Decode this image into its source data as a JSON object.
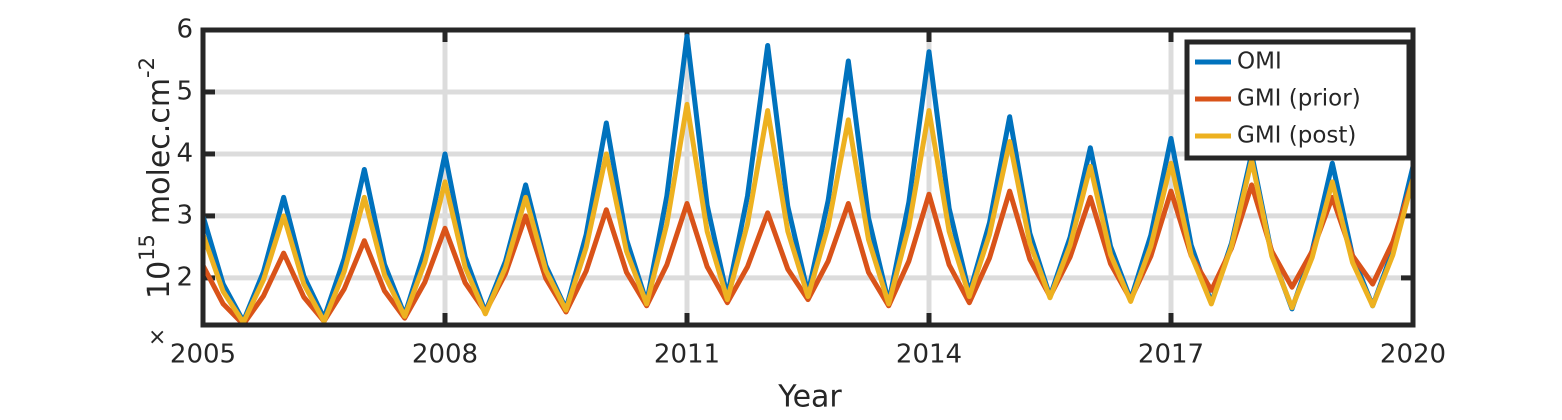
{
  "chart_data": {
    "type": "line",
    "xlabel": "Year",
    "ylabel": {
      "multiplier": "×",
      "base": "10",
      "exponent": "15",
      "unit": "molec.cm",
      "unit_exponent": "-2"
    },
    "x": [
      2005,
      2005.25,
      2005.5,
      2005.75,
      2006,
      2006.25,
      2006.5,
      2006.75,
      2007,
      2007.25,
      2007.5,
      2007.75,
      2008,
      2008.25,
      2008.5,
      2008.75,
      2009,
      2009.25,
      2009.5,
      2009.75,
      2010,
      2010.25,
      2010.5,
      2010.75,
      2011,
      2011.25,
      2011.5,
      2011.75,
      2012,
      2012.25,
      2012.5,
      2012.75,
      2013,
      2013.25,
      2013.5,
      2013.75,
      2014,
      2014.25,
      2014.5,
      2014.75,
      2015,
      2015.25,
      2015.5,
      2015.75,
      2016,
      2016.25,
      2016.5,
      2016.75,
      2017,
      2017.25,
      2017.5,
      2017.75,
      2018,
      2018.25,
      2018.5,
      2018.75,
      2019,
      2019.25,
      2019.5,
      2019.75,
      2020
    ],
    "series": [
      {
        "name": "OMI",
        "color": "#0072bd",
        "values": [
          3.0,
          1.9,
          1.3,
          2.1,
          3.3,
          2.03,
          1.35,
          2.31,
          3.75,
          2.22,
          1.4,
          2.44,
          4.0,
          2.34,
          1.45,
          2.27,
          3.5,
          2.2,
          1.5,
          2.7,
          4.5,
          2.62,
          1.6,
          3.32,
          5.9,
          3.17,
          1.7,
          3.32,
          5.75,
          3.15,
          1.75,
          3.25,
          5.5,
          2.97,
          1.6,
          3.22,
          5.65,
          3.12,
          1.75,
          2.89,
          4.6,
          2.72,
          1.7,
          2.66,
          4.1,
          2.51,
          1.65,
          2.69,
          4.25,
          2.53,
          1.6,
          2.56,
          4.0,
          2.38,
          1.5,
          2.44,
          3.85,
          2.36,
          1.55,
          2.45,
          3.8
        ]
      },
      {
        "name": "GMI (prior)",
        "color": "#d95319",
        "values": [
          2.2,
          1.58,
          1.25,
          1.71,
          2.4,
          1.69,
          1.3,
          1.82,
          2.6,
          1.79,
          1.35,
          1.93,
          2.8,
          1.92,
          1.45,
          2.07,
          3.0,
          1.99,
          1.45,
          2.11,
          3.1,
          2.09,
          1.55,
          2.21,
          3.2,
          2.18,
          1.6,
          2.18,
          3.05,
          2.14,
          1.65,
          2.27,
          3.2,
          2.09,
          1.55,
          2.27,
          3.35,
          2.21,
          1.6,
          2.32,
          3.4,
          2.3,
          1.7,
          2.34,
          3.3,
          2.23,
          1.65,
          2.35,
          3.4,
          2.36,
          1.8,
          2.48,
          3.5,
          2.43,
          1.85,
          2.43,
          3.3,
          2.36,
          1.9,
          2.58,
          3.6
        ]
      },
      {
        "name": "GMI (post)",
        "color": "#edb120",
        "values": [
          2.7,
          1.78,
          1.28,
          1.97,
          3.0,
          1.9,
          1.3,
          2.1,
          3.3,
          2.05,
          1.38,
          2.25,
          3.55,
          2.17,
          1.42,
          2.17,
          3.3,
          2.12,
          1.48,
          2.49,
          4.0,
          2.43,
          1.58,
          2.87,
          4.8,
          2.75,
          1.65,
          2.87,
          4.7,
          2.75,
          1.7,
          2.84,
          4.55,
          2.62,
          1.58,
          2.83,
          4.7,
          2.75,
          1.7,
          2.7,
          4.2,
          2.56,
          1.68,
          2.53,
          3.8,
          2.38,
          1.62,
          2.51,
          3.85,
          2.37,
          1.58,
          2.51,
          3.9,
          2.35,
          1.52,
          2.33,
          3.55,
          2.25,
          1.55,
          2.37,
          3.6
        ]
      }
    ],
    "xlim": [
      2005,
      2020
    ],
    "xticks": [
      2005,
      2008,
      2011,
      2014,
      2017,
      2020
    ],
    "ylim": [
      1.24,
      6
    ],
    "yticks": [
      2,
      3,
      4,
      5,
      6
    ],
    "grid": true,
    "legend": "upper right"
  }
}
